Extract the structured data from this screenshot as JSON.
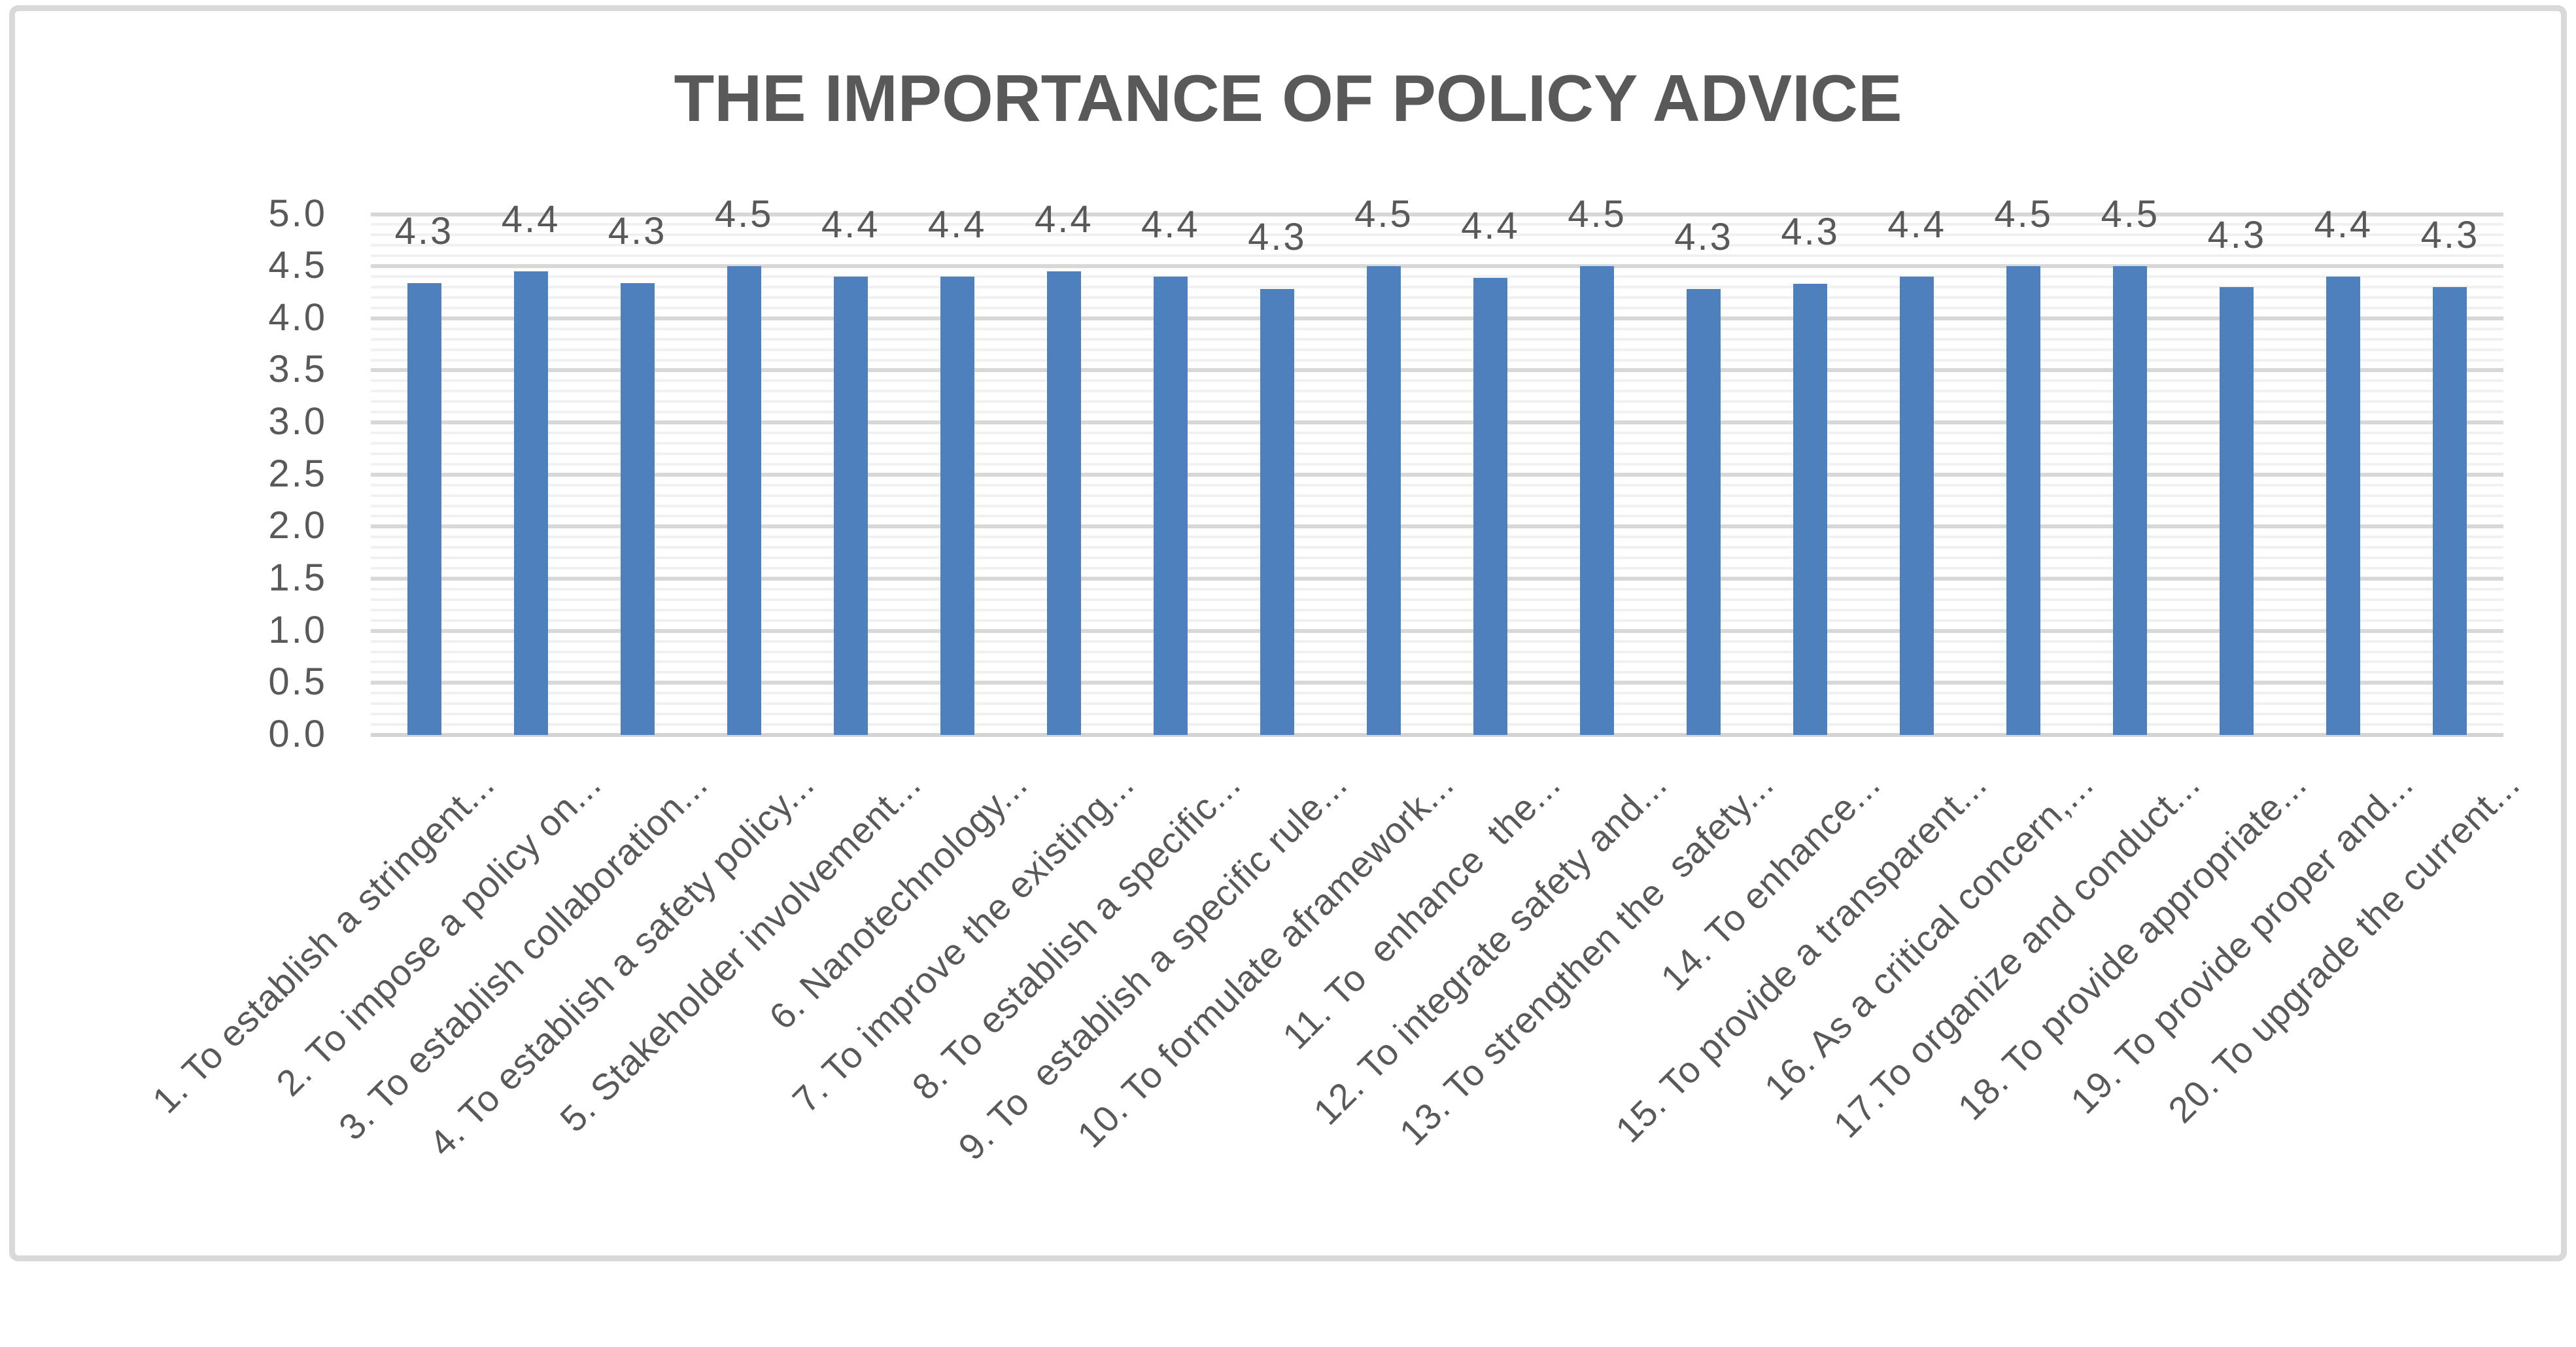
{
  "chart_data": {
    "type": "bar",
    "title": "THE IMPORTANCE OF POLICY ADVICE",
    "categories": [
      "1. To establish a stringent...",
      "2. To impose a policy on...",
      "3. To establish collaboration...",
      "4. To establish a safety policy...",
      "5. Stakeholder involvement...",
      "6. Nanotechnology...",
      "7. To improve the existing...",
      "8. To establish a specific...",
      "9. To  establish a specific rule...",
      "10. To formulate aframework...",
      "11. To  enhance  the...",
      "12. To integrate safety and...",
      "13. To strengthen the  safety...",
      "14. To enhance...",
      "15. To provide a transparent...",
      "16. As a critical concern,...",
      "17.To organize and conduct...",
      "18. To provide appropriate...",
      "19. To provide proper and...",
      "20. To upgrade the current..."
    ],
    "values": [
      4.34,
      4.45,
      4.34,
      4.5,
      4.4,
      4.4,
      4.45,
      4.4,
      4.28,
      4.5,
      4.39,
      4.5,
      4.28,
      4.33,
      4.4,
      4.5,
      4.5,
      4.3,
      4.4,
      4.3
    ],
    "data_labels": [
      "4.3",
      "4.4",
      "4.3",
      "4.5",
      "4.4",
      "4.4",
      "4.4",
      "4.4",
      "4.3",
      "4.5",
      "4.4",
      "4.5",
      "4.3",
      "4.3",
      "4.4",
      "4.5",
      "4.5",
      "4.3",
      "4.4",
      "4.3"
    ],
    "xlabel": "",
    "ylabel": "",
    "ylim": [
      0.0,
      5.0
    ],
    "ytick_interval_major": 0.5,
    "ytick_interval_minor": 0.1,
    "ytick_labels": [
      "0.0",
      "0.5",
      "1.0",
      "1.5",
      "2.0",
      "2.5",
      "3.0",
      "3.5",
      "4.0",
      "4.5",
      "5.0"
    ],
    "grid": "horizontal, major and minor, on",
    "legend": "none",
    "bar_color": "#4d80bc",
    "text_color": "#595959",
    "major_gridline_color": "#d8d8d8",
    "minor_gridline_color": "#f1f1f1",
    "axis_line_color": "#d4d4d4",
    "frame_border_color": "#d9d9d9",
    "background_color": "#ffffff"
  }
}
